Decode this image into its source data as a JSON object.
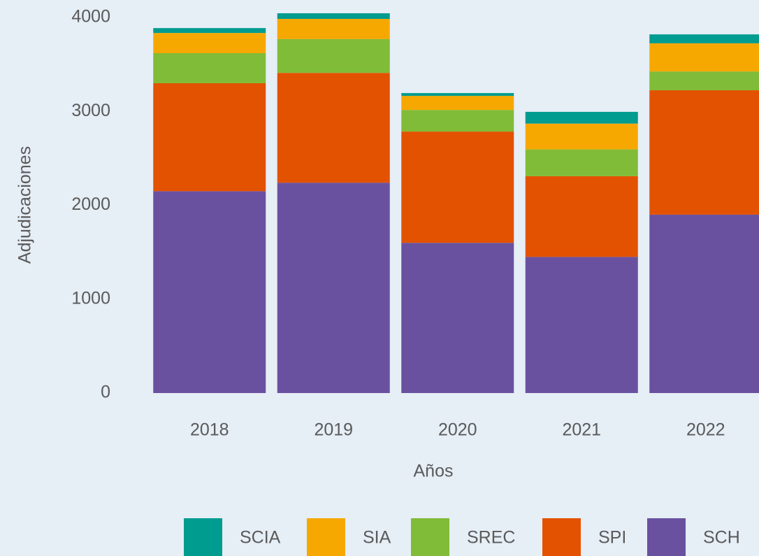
{
  "chart_data": {
    "type": "stacked_bar",
    "x_label": "Años",
    "y_label": "Adjudicaciones",
    "categories": [
      "2018",
      "2019",
      "2020",
      "2021",
      "2022"
    ],
    "series": [
      {
        "name": "SCIA",
        "color": "#009c8f",
        "values": [
          52,
          60,
          30,
          125,
          95
        ]
      },
      {
        "name": "SIA",
        "color": "#f6a800",
        "values": [
          215,
          215,
          150,
          275,
          300
        ]
      },
      {
        "name": "SREC",
        "color": "#80bc38",
        "values": [
          320,
          360,
          230,
          285,
          200
        ]
      },
      {
        "name": "SPI",
        "color": "#e35200",
        "values": [
          1150,
          1170,
          1185,
          860,
          1325
        ]
      },
      {
        "name": "SCH",
        "color": "#6a51a0",
        "values": [
          2150,
          2240,
          1600,
          1450,
          1900
        ]
      }
    ],
    "ylim": [
      0,
      4000
    ],
    "yticks": [
      0,
      1000,
      2000,
      3000,
      4000
    ],
    "grid": false,
    "legend": "bottom"
  }
}
